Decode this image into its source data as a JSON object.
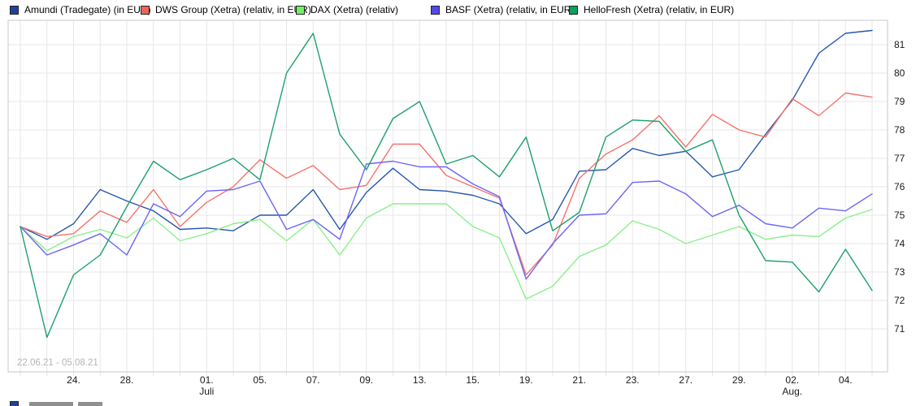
{
  "legend": {
    "items": [
      {
        "label": "Amundi (Tradegate) (in EUR)",
        "color": "#20429b"
      },
      {
        "label": "DWS Group (Xetra) (relativ, in EUR)",
        "color": "#f0635a"
      },
      {
        "label": "DAX (Xetra) (relativ)",
        "color": "#74f066"
      },
      {
        "label": "BASF (Xetra) (relativ, in EUR)",
        "color": "#5149e8"
      },
      {
        "label": "HelloFresh (Xetra) (relativ, in EUR)",
        "color": "#0aa159"
      }
    ]
  },
  "chart": {
    "date_range_label": "22.06.21 - 05.08.21",
    "y_axis_ticks": [
      71,
      72,
      73,
      74,
      75,
      76,
      77,
      78,
      79,
      80,
      81
    ],
    "x_tick_labels": [
      {
        "index": 2,
        "label": "24."
      },
      {
        "index": 4,
        "label": "28."
      },
      {
        "index": 7,
        "label": "01."
      },
      {
        "index": 9,
        "label": "05."
      },
      {
        "index": 11,
        "label": "07."
      },
      {
        "index": 13,
        "label": "09."
      },
      {
        "index": 15,
        "label": "13."
      },
      {
        "index": 17,
        "label": "15."
      },
      {
        "index": 19,
        "label": "19."
      },
      {
        "index": 21,
        "label": "21."
      },
      {
        "index": 23,
        "label": "23."
      },
      {
        "index": 25,
        "label": "27."
      },
      {
        "index": 27,
        "label": "29."
      },
      {
        "index": 29,
        "label": "02."
      },
      {
        "index": 31,
        "label": "04."
      }
    ],
    "month_labels": [
      {
        "index": 7,
        "label": "Juli"
      },
      {
        "index": 29,
        "label": "Aug."
      }
    ]
  },
  "chart_data": {
    "type": "line",
    "title": "",
    "xlabel": "",
    "ylabel": "",
    "ylim": [
      69.5,
      81.9
    ],
    "grid": true,
    "legend_position": "top",
    "x": [
      "22.06",
      "23.06",
      "24.06",
      "25.06",
      "28.06",
      "29.06",
      "30.06",
      "01.07",
      "02.07",
      "05.07",
      "06.07",
      "07.07",
      "08.07",
      "09.07",
      "12.07",
      "13.07",
      "14.07",
      "15.07",
      "16.07",
      "19.07",
      "20.07",
      "21.07",
      "22.07",
      "23.07",
      "26.07",
      "27.07",
      "28.07",
      "29.07",
      "30.07",
      "02.08",
      "03.08",
      "04.08",
      "05.08"
    ],
    "series": [
      {
        "name": "Amundi (Tradegate) (in EUR)",
        "color": "#2757ae",
        "values": [
          74.6,
          74.15,
          74.7,
          75.9,
          75.5,
          75.15,
          74.5,
          74.55,
          74.45,
          75.0,
          75.0,
          75.9,
          74.5,
          75.8,
          76.65,
          75.9,
          75.85,
          75.7,
          75.4,
          74.35,
          74.85,
          76.55,
          76.6,
          77.35,
          77.1,
          77.25,
          76.35,
          76.6,
          77.85,
          79.05,
          80.7,
          81.4,
          81.5
        ]
      },
      {
        "name": "DWS Group (Xetra) (relativ, in EUR)",
        "color": "#f4746c",
        "values": [
          74.6,
          74.25,
          74.35,
          75.15,
          74.75,
          75.9,
          74.6,
          75.45,
          76.0,
          76.95,
          76.3,
          76.75,
          75.9,
          76.05,
          77.5,
          77.5,
          76.4,
          76.0,
          75.6,
          72.9,
          73.95,
          76.3,
          77.15,
          77.65,
          78.5,
          77.4,
          78.55,
          78.0,
          77.75,
          79.1,
          78.5,
          79.3,
          79.15
        ]
      },
      {
        "name": "DAX (Xetra) (relativ)",
        "color": "#8af08a",
        "values": [
          74.6,
          73.75,
          74.25,
          74.5,
          74.2,
          74.9,
          74.1,
          74.35,
          74.7,
          74.85,
          74.1,
          74.85,
          73.6,
          74.9,
          75.4,
          75.4,
          75.4,
          74.6,
          74.2,
          72.05,
          72.5,
          73.55,
          73.95,
          74.8,
          74.5,
          74.0,
          74.3,
          74.6,
          74.15,
          74.3,
          74.25,
          74.9,
          75.2
        ]
      },
      {
        "name": "BASF (Xetra) (relativ, in EUR)",
        "color": "#6b66f4",
        "values": [
          74.6,
          73.6,
          73.95,
          74.35,
          73.6,
          75.4,
          74.95,
          75.85,
          75.9,
          76.2,
          74.5,
          74.85,
          74.15,
          76.8,
          76.9,
          76.7,
          76.7,
          76.1,
          75.65,
          72.75,
          74.0,
          75.0,
          75.05,
          76.15,
          76.2,
          75.75,
          74.95,
          75.35,
          74.7,
          74.55,
          75.25,
          75.15,
          75.75
        ]
      },
      {
        "name": "HelloFresh (Xetra) (relativ, in EUR)",
        "color": "#1da06a",
        "values": [
          74.6,
          70.7,
          72.9,
          73.6,
          75.3,
          76.9,
          76.25,
          76.6,
          77.0,
          76.25,
          80.0,
          81.4,
          77.85,
          76.6,
          78.4,
          79.0,
          76.8,
          77.1,
          76.35,
          77.75,
          74.45,
          75.1,
          77.75,
          78.35,
          78.3,
          77.25,
          77.65,
          75.0,
          73.4,
          73.35,
          72.3,
          73.8,
          72.35
        ]
      }
    ]
  }
}
